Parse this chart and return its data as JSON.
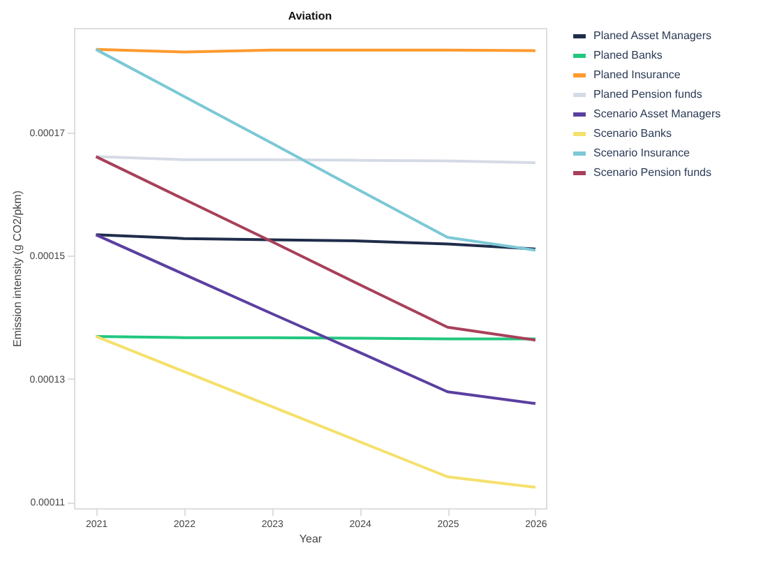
{
  "chart_data": {
    "type": "line",
    "title": "Aviation",
    "xlabel": "Year",
    "ylabel": "Emission intensity (g CO2/pkm)",
    "x": [
      2021,
      2022,
      2023,
      2024,
      2025,
      2026
    ],
    "xlim": [
      2020.75,
      2026.12
    ],
    "xticks": [
      2021,
      2022,
      2023,
      2024,
      2025,
      2026
    ],
    "ylim": [
      0.000109,
      0.000187
    ],
    "yticks": [
      0.00011,
      0.00013,
      0.00015,
      0.00017
    ],
    "grid": false,
    "legend": "right",
    "marker": "none",
    "line_style": "solid",
    "series": [
      {
        "name": "Planed Asset Managers",
        "color": "#1f2d4a",
        "values": [
          0.0001534,
          0.0001528,
          0.0001526,
          0.0001524,
          0.0001519,
          0.0001511
        ]
      },
      {
        "name": "Planed Banks",
        "color": "#22c77f",
        "values": [
          0.0001369,
          0.0001367,
          0.0001367,
          0.0001366,
          0.0001365,
          0.0001365
        ]
      },
      {
        "name": "Planed Insurance",
        "color": "#ff9a2e",
        "values": [
          0.0001835,
          0.0001831,
          0.0001834,
          0.0001834,
          0.0001834,
          0.0001833
        ]
      },
      {
        "name": "Planed Pension funds",
        "color": "#d5dbe6",
        "values": [
          0.0001661,
          0.0001656,
          0.0001656,
          0.0001655,
          0.0001654,
          0.0001651
        ]
      },
      {
        "name": "Scenario Asset Managers",
        "color": "#5b3fa0",
        "values": [
          0.0001534,
          0.000147,
          0.0001406,
          0.0001343,
          0.0001279,
          0.000126
        ]
      },
      {
        "name": "Scenario Banks",
        "color": "#f5e06b",
        "values": [
          0.0001369,
          0.0001312,
          0.0001255,
          0.0001198,
          0.0001141,
          0.0001124
        ]
      },
      {
        "name": "Scenario Insurance",
        "color": "#7cc8d6",
        "values": [
          0.0001835,
          0.0001759,
          0.0001683,
          0.0001606,
          0.000153,
          0.0001509
        ]
      },
      {
        "name": "Scenario Pension funds",
        "color": "#a8405a",
        "values": [
          0.0001661,
          0.0001592,
          0.0001523,
          0.0001453,
          0.0001384,
          0.0001363
        ]
      }
    ]
  }
}
